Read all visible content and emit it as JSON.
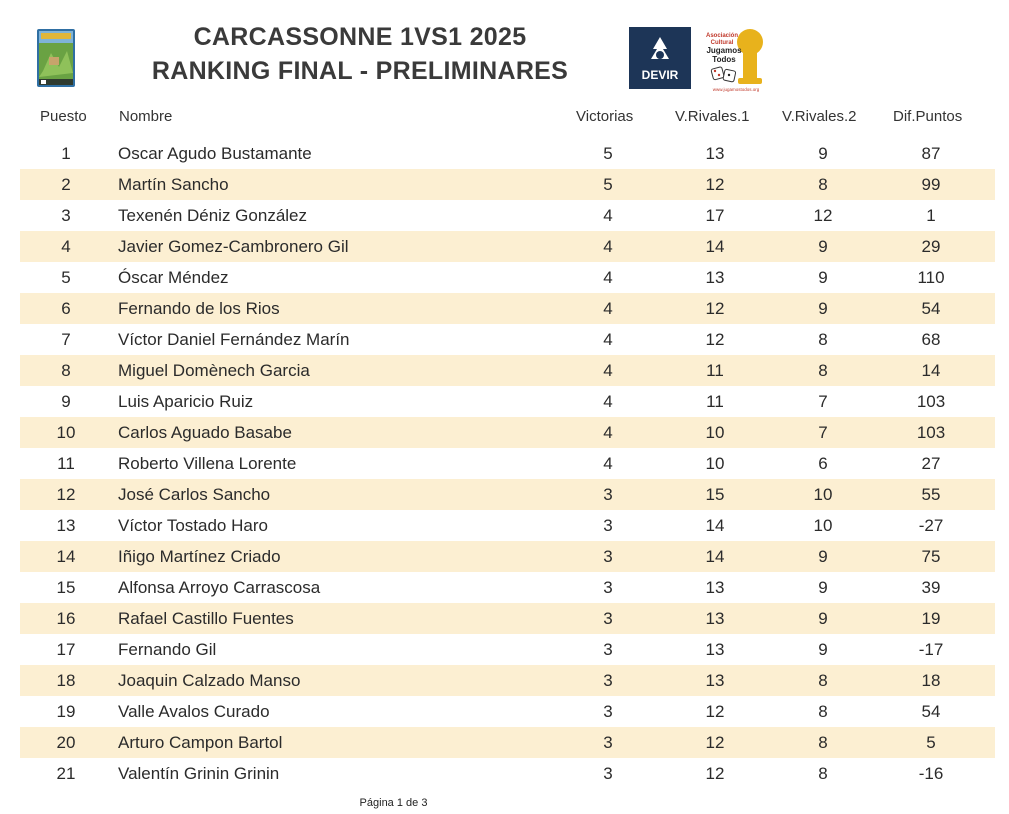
{
  "header": {
    "title_line1": "CARCASSONNE 1VS1 2025",
    "title_line2": "RANKING FINAL - PRELIMINARES",
    "devir_text": "DEVIR",
    "jt_line1": "Asociación",
    "jt_line2": "Cultural",
    "jt_line3": "Jugamos",
    "jt_line4": "Todos",
    "jt_url": "www.jugamostodos.org"
  },
  "columns": {
    "puesto": "Puesto",
    "nombre": "Nombre",
    "victorias": "Victorias",
    "rivales1": "V.Rivales.1",
    "rivales2": "V.Rivales.2",
    "dif": "Dif.Puntos"
  },
  "rows": [
    {
      "pos": "1",
      "name": "Oscar Agudo Bustamante",
      "vic": "5",
      "r1": "13",
      "r2": "9",
      "dif": "87"
    },
    {
      "pos": "2",
      "name": "Martín Sancho",
      "vic": "5",
      "r1": "12",
      "r2": "8",
      "dif": "99"
    },
    {
      "pos": "3",
      "name": "Texenén Déniz González",
      "vic": "4",
      "r1": "17",
      "r2": "12",
      "dif": "1"
    },
    {
      "pos": "4",
      "name": "Javier Gomez-Cambronero Gil",
      "vic": "4",
      "r1": "14",
      "r2": "9",
      "dif": "29"
    },
    {
      "pos": "5",
      "name": "Óscar Méndez",
      "vic": "4",
      "r1": "13",
      "r2": "9",
      "dif": "110"
    },
    {
      "pos": "6",
      "name": "Fernando de los Rios",
      "vic": "4",
      "r1": "12",
      "r2": "9",
      "dif": "54"
    },
    {
      "pos": "7",
      "name": "Víctor Daniel Fernández Marín",
      "vic": "4",
      "r1": "12",
      "r2": "8",
      "dif": "68"
    },
    {
      "pos": "8",
      "name": "Miguel Domènech Garcia",
      "vic": "4",
      "r1": "11",
      "r2": "8",
      "dif": "14"
    },
    {
      "pos": "9",
      "name": "Luis Aparicio Ruiz",
      "vic": "4",
      "r1": "11",
      "r2": "7",
      "dif": "103"
    },
    {
      "pos": "10",
      "name": "Carlos Aguado Basabe",
      "vic": "4",
      "r1": "10",
      "r2": "7",
      "dif": "103"
    },
    {
      "pos": "11",
      "name": "Roberto Villena Lorente",
      "vic": "4",
      "r1": "10",
      "r2": "6",
      "dif": "27"
    },
    {
      "pos": "12",
      "name": "José Carlos Sancho",
      "vic": "3",
      "r1": "15",
      "r2": "10",
      "dif": "55"
    },
    {
      "pos": "13",
      "name": "Víctor Tostado Haro",
      "vic": "3",
      "r1": "14",
      "r2": "10",
      "dif": "-27"
    },
    {
      "pos": "14",
      "name": "Iñigo Martínez Criado",
      "vic": "3",
      "r1": "14",
      "r2": "9",
      "dif": "75"
    },
    {
      "pos": "15",
      "name": "Alfonsa Arroyo Carrascosa",
      "vic": "3",
      "r1": "13",
      "r2": "9",
      "dif": "39"
    },
    {
      "pos": "16",
      "name": "Rafael Castillo Fuentes",
      "vic": "3",
      "r1": "13",
      "r2": "9",
      "dif": "19"
    },
    {
      "pos": "17",
      "name": "Fernando Gil",
      "vic": "3",
      "r1": "13",
      "r2": "9",
      "dif": "-17"
    },
    {
      "pos": "18",
      "name": "Joaquin Calzado Manso",
      "vic": "3",
      "r1": "13",
      "r2": "8",
      "dif": "18"
    },
    {
      "pos": "19",
      "name": "Valle Avalos Curado",
      "vic": "3",
      "r1": "12",
      "r2": "8",
      "dif": "54"
    },
    {
      "pos": "20",
      "name": "Arturo Campon Bartol",
      "vic": "3",
      "r1": "12",
      "r2": "8",
      "dif": "5"
    },
    {
      "pos": "21",
      "name": "Valentín Grinin Grinin",
      "vic": "3",
      "r1": "12",
      "r2": "8",
      "dif": "-16"
    }
  ],
  "footer": {
    "page": "Página 1 de 3"
  },
  "colors": {
    "stripe": "#fcefd2",
    "devir_bg": "#1d3557",
    "jt_yellow": "#e8b21c"
  }
}
